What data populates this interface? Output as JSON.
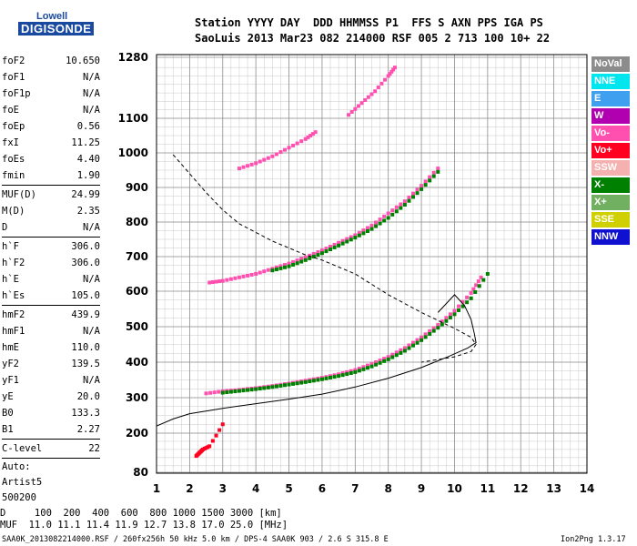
{
  "logo": {
    "line1": "Lowell",
    "line2": "DIGISONDE"
  },
  "header": {
    "line1": "Station YYYY DAY  DDD HHMMSS P1  FFS S AXN PPS IGA PS",
    "line2": "SaoLuis 2013 Mar23 082 214000 RSF 005 2 713 100 10+ 22"
  },
  "params": [
    {
      "name": "foF2",
      "value": "10.650"
    },
    {
      "name": "foF1",
      "value": "N/A"
    },
    {
      "name": "foF1p",
      "value": "N/A"
    },
    {
      "name": "foE",
      "value": "N/A"
    },
    {
      "name": "foEp",
      "value": "0.56"
    },
    {
      "name": "fxI",
      "value": "11.25"
    },
    {
      "name": "foEs",
      "value": "4.40"
    },
    {
      "name": "fmin",
      "value": "1.90"
    },
    {
      "sep": true
    },
    {
      "name": "MUF(D)",
      "value": "24.99"
    },
    {
      "name": "M(D)",
      "value": "2.35"
    },
    {
      "name": "D",
      "value": "N/A"
    },
    {
      "sep": true
    },
    {
      "name": "h`F",
      "value": "306.0"
    },
    {
      "name": "h`F2",
      "value": "306.0"
    },
    {
      "name": "h`E",
      "value": "N/A"
    },
    {
      "name": "h`Es",
      "value": "105.0"
    },
    {
      "sep": true
    },
    {
      "name": "hmF2",
      "value": "439.9"
    },
    {
      "name": "hmF1",
      "value": "N/A"
    },
    {
      "name": "hmE",
      "value": "110.0"
    },
    {
      "name": "yF2",
      "value": "139.5"
    },
    {
      "name": "yF1",
      "value": "N/A"
    },
    {
      "name": "yE",
      "value": "20.0"
    },
    {
      "name": "B0",
      "value": "133.3"
    },
    {
      "name": "B1",
      "value": "2.27"
    },
    {
      "sep": true
    },
    {
      "name": "C-level",
      "value": "22"
    },
    {
      "sep": true
    }
  ],
  "auto": {
    "line1": "Auto:",
    "line2": "Artist5",
    "line3": "500200"
  },
  "legend": [
    {
      "label": "NoVal",
      "color": "#8c8c8c"
    },
    {
      "label": "NNE",
      "color": "#00e5ee"
    },
    {
      "label": "E",
      "color": "#3fa0f0"
    },
    {
      "label": "W",
      "color": "#b000b0"
    },
    {
      "label": "Vo-",
      "color": "#ff50b0"
    },
    {
      "label": "Vo+",
      "color": "#ff0020"
    },
    {
      "label": "SSW",
      "color": "#f5b0b0"
    },
    {
      "label": "X-",
      "color": "#008000"
    },
    {
      "label": "X+",
      "color": "#70b060"
    },
    {
      "label": "SSE",
      "color": "#d0d000"
    },
    {
      "label": "NNW",
      "color": "#1010d0"
    }
  ],
  "bottom": {
    "d_row": "D     100  200  400  600  800 1000 1500 3000 [km]",
    "muf_row": "MUF  11.0 11.1 11.4 11.9 12.7 13.8 17.0 25.0 [MHz]"
  },
  "footer": {
    "left": "SAA0K_2013082214000.RSF / 260fx256h 50 kHz 5.0 km / DPS-4 SAA0K 903 / 2.6 S 315.8 E",
    "right": "Ion2Png 1.3.17"
  },
  "chart_data": {
    "type": "scatter",
    "x_ticks": [
      1,
      2,
      3,
      4,
      5,
      6,
      7,
      8,
      9,
      10,
      11,
      12,
      13,
      14
    ],
    "y_ticks": [
      80,
      200,
      300,
      400,
      500,
      600,
      700,
      800,
      900,
      1000,
      1100,
      1280
    ],
    "xlim": [
      1,
      14
    ],
    "ylim": [
      80,
      1280
    ],
    "grid": true,
    "series": [
      {
        "name": "Vo-",
        "color": "#ff50b0",
        "x": [
          2.5,
          3.0,
          3.5,
          4.0,
          4.5,
          5.0,
          5.5,
          6.0,
          6.5,
          7.0,
          7.5,
          8.0,
          8.5,
          9.0,
          9.5,
          10.0,
          10.5,
          10.8
        ],
        "y": [
          312,
          318,
          322,
          327,
          333,
          340,
          348,
          356,
          366,
          378,
          395,
          415,
          440,
          470,
          505,
          545,
          595,
          640
        ]
      },
      {
        "name": "X-",
        "color": "#008000",
        "x": [
          3.0,
          3.5,
          4.0,
          4.5,
          5.0,
          5.5,
          6.0,
          6.5,
          7.0,
          7.5,
          8.0,
          8.5,
          9.0,
          9.5,
          10.0,
          10.5,
          11.0
        ],
        "y": [
          314,
          319,
          324,
          330,
          337,
          344,
          352,
          361,
          372,
          388,
          408,
          432,
          462,
          497,
          535,
          580,
          650
        ]
      },
      {
        "name": "Vo-",
        "color": "#ff50b0",
        "x": [
          2.6,
          3.0,
          3.5,
          4.0,
          4.5,
          5.0,
          5.5,
          6.0,
          6.5,
          7.0,
          7.5,
          8.0,
          8.5,
          9.0,
          9.5
        ],
        "y": [
          625,
          630,
          640,
          650,
          665,
          680,
          698,
          718,
          740,
          762,
          790,
          825,
          860,
          905,
          955
        ]
      },
      {
        "name": "X-",
        "color": "#008000",
        "x": [
          4.5,
          5.0,
          5.5,
          6.0,
          6.5,
          7.0,
          7.5,
          8.0,
          8.5,
          9.0,
          9.5
        ],
        "y": [
          660,
          672,
          690,
          710,
          732,
          755,
          780,
          812,
          850,
          895,
          945
        ]
      },
      {
        "name": "Vo-",
        "color": "#ff50b0",
        "x": [
          3.5,
          4.0,
          4.5,
          5.0,
          5.5,
          5.8
        ],
        "y": [
          955,
          970,
          990,
          1015,
          1040,
          1060
        ]
      },
      {
        "name": "Vo-",
        "color": "#ff50b0",
        "x": [
          6.8,
          7.2,
          7.6,
          8.0,
          8.2
        ],
        "y": [
          1110,
          1145,
          1180,
          1225,
          1250
        ]
      },
      {
        "name": "Vo+",
        "color": "#ff0020",
        "x": [
          2.2,
          2.3,
          2.4,
          2.6,
          3.0
        ],
        "y": [
          130,
          140,
          150,
          160,
          225
        ]
      }
    ],
    "curves": [
      {
        "name": "",
        "style": "solid",
        "x": [
          1.0,
          1.5,
          2.0,
          3.0,
          4.0,
          5.0,
          6.0,
          7.0,
          8.0,
          9.0,
          9.8,
          10.4,
          10.65,
          10.6,
          10.5,
          10.3,
          10.0,
          9.5
        ],
        "y": [
          220,
          240,
          255,
          270,
          283,
          296,
          310,
          330,
          355,
          385,
          415,
          440,
          455,
          480,
          520,
          560,
          590,
          540
        ]
      },
      {
        "name": "",
        "style": "dashed",
        "x": [
          1.5,
          2.0,
          2.5,
          3.0,
          3.5,
          4.0,
          4.5,
          5.0,
          5.5,
          6.0,
          7.0,
          8.0,
          9.0,
          10.0,
          10.5,
          10.65,
          10.5,
          10.0,
          9.0
        ],
        "y": [
          995,
          940,
          885,
          835,
          795,
          770,
          745,
          725,
          705,
          690,
          650,
          590,
          540,
          495,
          470,
          450,
          430,
          415,
          400
        ]
      }
    ]
  }
}
